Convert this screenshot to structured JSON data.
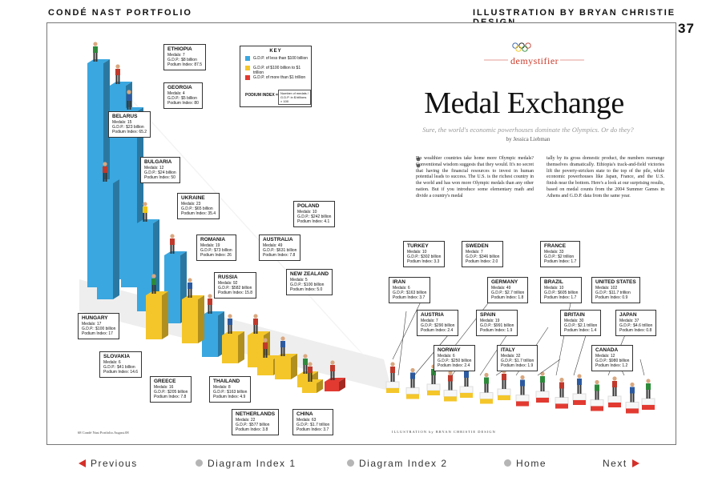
{
  "header": {
    "left": "CONDÉ NAST PORTFOLIO",
    "right": "ILLUSTRATION BY BRYAN CHRISTIE DESIGN",
    "page_number": "37"
  },
  "article": {
    "section": "demystifier",
    "title": "Medal Exchange",
    "subtitle": "Sure, the world's economic powerhouses dominate the Olympics. Or do they?",
    "byline": "by Jessica Liebman",
    "body_left": "Do wealthier countries take home more Olympic medals? Conventional wisdom suggests that they would. It's no secret that having the financial resources to invest in human potential leads to success. The U.S. is the richest country in the world and has won more Olympic medals than any other nation. But if you introduce some elementary math and divide a country's medal",
    "body_right": "tally by its gross domestic product, the numbers rearrange themselves dramatically. Ethiopia's track-and-field victories lift the poverty-stricken state to the top of the pile, while economic powerhouses like Japan, France, and the U.S. finish near the bottom. Here's a look at our surprising results, based on medal counts from the 2004 Summer Games in Athens and G.D.P. data from the same year.",
    "footer_left": "68 Condé Nast Portfolio.August.08",
    "footer_right": "ILLUSTRATION by BRYAN CHRISTIE DESIGN"
  },
  "key": {
    "title": "KEY",
    "items": [
      {
        "label": "G.D.P. of less than $100 billion",
        "color": "#3aa7e0"
      },
      {
        "label": "G.D.P. of $100 billion to $1 trillion",
        "color": "#f4c62a"
      },
      {
        "label": "G.D.P. of more than $1 trillion",
        "color": "#e23a31"
      }
    ],
    "podium_label": "PODIUM INDEX =",
    "podium_formula": "Number of medals / G.D.P. in $ billions × 100"
  },
  "countries": [
    {
      "name": "ETHIOPIA",
      "medals": "Medals: 7",
      "gdp": "G.D.P.: $8 billion",
      "index": "Podium Index: 87.5"
    },
    {
      "name": "GEORGIA",
      "medals": "Medals: 4",
      "gdp": "G.D.P.: $5 billion",
      "index": "Podium Index: 80"
    },
    {
      "name": "BELARUS",
      "medals": "Medals: 15",
      "gdp": "G.D.P.: $23 billion",
      "index": "Podium Index: 65.2"
    },
    {
      "name": "BULGARIA",
      "medals": "Medals: 12",
      "gdp": "G.D.P.: $24 billion",
      "index": "Podium Index: 50"
    },
    {
      "name": "UKRAINE",
      "medals": "Medals: 23",
      "gdp": "G.D.P.: $65 billion",
      "index": "Podium Index: 35.4"
    },
    {
      "name": "ROMANIA",
      "medals": "Medals: 19",
      "gdp": "G.D.P.: $73 billion",
      "index": "Podium Index: 26"
    },
    {
      "name": "RUSSIA",
      "medals": "Medals: 92",
      "gdp": "G.D.P.: $582 billion",
      "index": "Podium Index: 15.8"
    },
    {
      "name": "HUNGARY",
      "medals": "Medals: 17",
      "gdp": "G.D.P.: $100 billion",
      "index": "Podium Index: 17"
    },
    {
      "name": "SLOVAKIA",
      "medals": "Medals: 6",
      "gdp": "G.D.P.: $41 billion",
      "index": "Podium Index: 14.6"
    },
    {
      "name": "GREECE",
      "medals": "Medals: 16",
      "gdp": "G.D.P.: $205 billion",
      "index": "Podium Index: 7.8"
    },
    {
      "name": "THAILAND",
      "medals": "Medals: 8",
      "gdp": "G.D.P.: $163 billion",
      "index": "Podium Index: 4.9"
    },
    {
      "name": "NETHERLANDS",
      "medals": "Medals: 22",
      "gdp": "G.D.P.: $577 billion",
      "index": "Podium Index: 3.8"
    },
    {
      "name": "CHINA",
      "medals": "Medals: 63",
      "gdp": "G.D.P.: $1.7 trillion",
      "index": "Podium Index: 3.7"
    },
    {
      "name": "AUSTRALIA",
      "medals": "Medals: 49",
      "gdp": "G.D.P.: $631 billion",
      "index": "Podium Index: 7.8"
    },
    {
      "name": "POLAND",
      "medals": "Medals: 10",
      "gdp": "G.D.P.: $242 billion",
      "index": "Podium Index: 4.1"
    },
    {
      "name": "NEW ZEALAND",
      "medals": "Medals: 5",
      "gdp": "G.D.P.: $100 billion",
      "index": "Podium Index: 5.0"
    },
    {
      "name": "TURKEY",
      "medals": "Medals: 10",
      "gdp": "G.D.P.: $302 billion",
      "index": "Podium Index: 3.3"
    },
    {
      "name": "IRAN",
      "medals": "Medals: 6",
      "gdp": "G.D.P.: $163 billion",
      "index": "Podium Index: 3.7"
    },
    {
      "name": "AUSTRIA",
      "medals": "Medals: 7",
      "gdp": "G.D.P.: $290 billion",
      "index": "Podium Index: 2.4"
    },
    {
      "name": "SWEDEN",
      "medals": "Medals: 7",
      "gdp": "G.D.P.: $346 billion",
      "index": "Podium Index: 2.0"
    },
    {
      "name": "NORWAY",
      "medals": "Medals: 6",
      "gdp": "G.D.P.: $250 billion",
      "index": "Podium Index: 2.4"
    },
    {
      "name": "GERMANY",
      "medals": "Medals: 49",
      "gdp": "G.D.P.: $2.7 trillion",
      "index": "Podium Index: 1.8"
    },
    {
      "name": "SPAIN",
      "medals": "Medals: 19",
      "gdp": "G.D.P.: $991 billion",
      "index": "Podium Index: 1.9"
    },
    {
      "name": "ITALY",
      "medals": "Medals: 32",
      "gdp": "G.D.P.: $1.7 trillion",
      "index": "Podium Index: 1.9"
    },
    {
      "name": "FRANCE",
      "medals": "Medals: 33",
      "gdp": "G.D.P.: $2 trillion",
      "index": "Podium Index: 1.7"
    },
    {
      "name": "BRAZIL",
      "medals": "Medals: 10",
      "gdp": "G.D.P.: $605 billion",
      "index": "Podium Index: 1.7"
    },
    {
      "name": "BRITAIN",
      "medals": "Medals: 30",
      "gdp": "G.D.P.: $2.1 trillion",
      "index": "Podium Index: 1.4"
    },
    {
      "name": "UNITED STATES",
      "medals": "Medals: 102",
      "gdp": "G.D.P.: $11.7 trillion",
      "index": "Podium Index: 0.9"
    },
    {
      "name": "JAPAN",
      "medals": "Medals: 37",
      "gdp": "G.D.P.: $4.6 trillion",
      "index": "Podium Index: 0.8"
    },
    {
      "name": "CANADA",
      "medals": "Medals: 12",
      "gdp": "G.D.P.: $980 billion",
      "index": "Podium Index: 1.2"
    }
  ],
  "nav": {
    "previous": "Previous",
    "diagram_index_1": "Diagram Index 1",
    "diagram_index_2": "Diagram Index 2",
    "home": "Home",
    "next": "Next"
  }
}
